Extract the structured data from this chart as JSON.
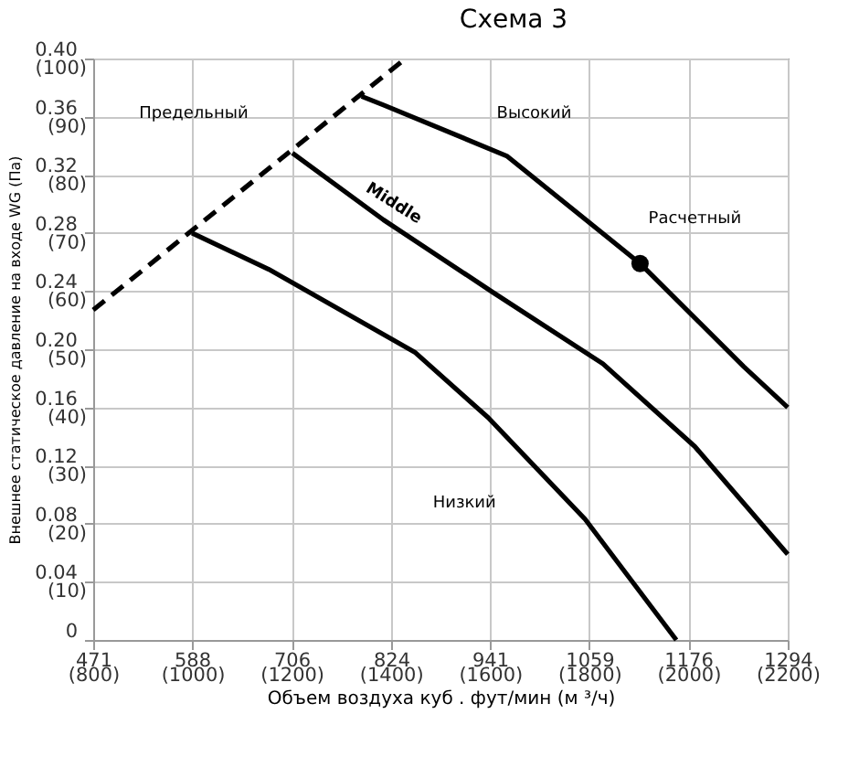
{
  "chart_data": {
    "type": "line",
    "title": "Схема 3",
    "xlabel": "Объем воздуха куб . фут/мин (м ³/ч)",
    "ylabel": "Внешнее статическое давление на входе WG (Па)",
    "xlim": [
      471,
      1294
    ],
    "xticks": [
      471,
      588,
      706,
      824,
      941,
      1059,
      1176,
      1294
    ],
    "x2lim": [
      800,
      2200
    ],
    "x2ticks": [
      {
        "value": 800,
        "label": "(800)"
      },
      {
        "value": 1000,
        "label": "(1000)"
      },
      {
        "value": 1200,
        "label": "(1200)"
      },
      {
        "value": 1400,
        "label": "(1400)"
      },
      {
        "value": 1600,
        "label": "(1600)"
      },
      {
        "value": 1800,
        "label": "(1800)"
      },
      {
        "value": 2000,
        "label": "(2000)"
      },
      {
        "value": 2200,
        "label": "(2200)"
      }
    ],
    "ylim": [
      0,
      0.4
    ],
    "yticks": [
      0,
      0.04,
      0.08,
      0.12,
      0.16,
      {
        "value": 0.2,
        "label": "0.20"
      },
      0.24,
      0.28,
      0.32,
      0.36,
      {
        "value": 0.4,
        "label": "0.40"
      }
    ],
    "y2lim": [
      0,
      100
    ],
    "y2ticks": [
      {
        "value": 10,
        "label": "(10)"
      },
      {
        "value": 20,
        "label": "(20)"
      },
      {
        "value": 30,
        "label": "(30)"
      },
      {
        "value": 40,
        "label": "(40)"
      },
      {
        "value": 50,
        "label": "(50)"
      },
      {
        "value": 60,
        "label": "(60)"
      },
      {
        "value": 70,
        "label": "(70)"
      },
      {
        "value": 80,
        "label": "(80)"
      },
      {
        "value": 90,
        "label": "(90)"
      },
      {
        "value": 100,
        "label": "(100)"
      }
    ],
    "grid": true,
    "legend": false,
    "marker": "none",
    "series": [
      {
        "name": "Предельный",
        "type": "line",
        "line_style": "dashed",
        "color": "#000000",
        "x": [
          471,
          841
        ],
        "values": [
          0.227,
          0.4
        ]
      },
      {
        "name": "Высокий",
        "type": "line",
        "line_style": "solid",
        "color": "#000000",
        "x": [
          789,
          815,
          961,
          1119,
          1242,
          1294
        ],
        "values": [
          0.374,
          0.368,
          0.333,
          0.259,
          0.188,
          0.16
        ]
      },
      {
        "name": "Middle",
        "type": "line",
        "line_style": "solid",
        "color": "#000000",
        "x": [
          707,
          815,
          945,
          1075,
          1184,
          1294
        ],
        "values": [
          0.335,
          0.289,
          0.239,
          0.19,
          0.133,
          0.059
        ]
      },
      {
        "name": "Низкий",
        "type": "line",
        "line_style": "solid",
        "color": "#000000",
        "x": [
          588,
          679,
          852,
          939,
          1054,
          1162
        ],
        "values": [
          0.28,
          0.255,
          0.198,
          0.153,
          0.083,
          0
        ]
      },
      {
        "name": "Расчетный",
        "type": "scatter",
        "marker": "circle",
        "color": "#000000",
        "x": [
          1119
        ],
        "values": [
          0.259
        ]
      }
    ]
  }
}
